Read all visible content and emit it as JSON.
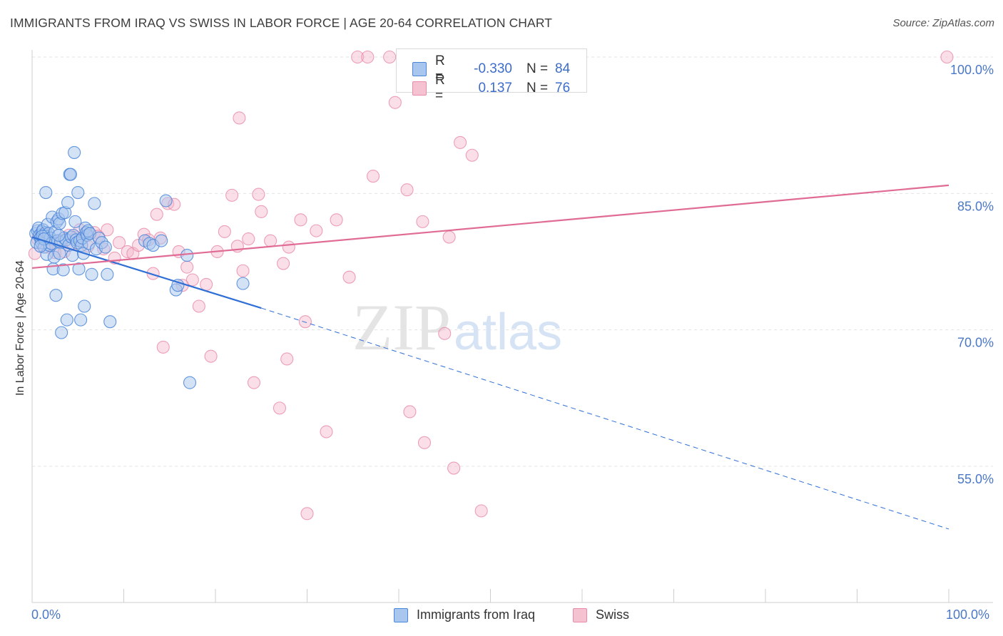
{
  "header": {
    "title": "IMMIGRANTS FROM IRAQ VS SWISS IN LABOR FORCE | AGE 20-64 CORRELATION CHART",
    "source": "Source: ZipAtlas.com"
  },
  "watermark": {
    "zip": "ZIP",
    "atlas": "atlas"
  },
  "legend_top": {
    "rows": [
      {
        "r_label": "R =",
        "r_value": "-0.330",
        "n_label": "N =",
        "n_value": "84"
      },
      {
        "r_label": "R =",
        "r_value": "0.137",
        "n_label": "N =",
        "n_value": "76"
      }
    ]
  },
  "legend_bottom": {
    "series1": "Immigrants from Iraq",
    "series2": "Swiss"
  },
  "x_axis": {
    "left_label": "0.0%",
    "right_label": "100.0%"
  },
  "chart_data": {
    "type": "scatter",
    "title": "IMMIGRANTS FROM IRAQ VS SWISS IN LABOR FORCE | AGE 20-64 CORRELATION CHART",
    "xlabel": "",
    "ylabel": "In Labor Force | Age 20-64",
    "xlim": [
      0,
      100
    ],
    "ylim": [
      40,
      101.5
    ],
    "y_ticks": [
      {
        "value": 55,
        "label": "55.0%"
      },
      {
        "value": 70,
        "label": "70.0%"
      },
      {
        "value": 85,
        "label": "85.0%"
      },
      {
        "value": 100,
        "label": "100.0%"
      }
    ],
    "x_tick_labels": [
      "0.0%",
      "100.0%"
    ],
    "grid": true,
    "colors": {
      "iraq_fill": "#a9c6ee",
      "iraq_stroke": "#4a86d8",
      "iraq_line": "#2f6fd6",
      "swiss_fill": "#f5b8cb",
      "swiss_stroke": "#e88aa8",
      "swiss_line": "#e06b94",
      "tick_label": "#4a78c7"
    },
    "series": [
      {
        "name": "Immigrants from Iraq",
        "r": -0.33,
        "n": 84,
        "trend": {
          "x0": 0,
          "y0": 80.2,
          "x1": 25,
          "y1": 72.4,
          "dash_to_x": 100,
          "dash_to_y": 48.1
        },
        "points": [
          [
            0.4,
            80.6
          ],
          [
            0.5,
            79.6
          ],
          [
            0.6,
            80.9
          ],
          [
            0.7,
            81.2
          ],
          [
            0.8,
            80.4
          ],
          [
            0.9,
            80.1
          ],
          [
            1.0,
            79.6
          ],
          [
            1.1,
            80.8
          ],
          [
            1.2,
            81.0
          ],
          [
            1.3,
            79.1
          ],
          [
            1.4,
            80.3
          ],
          [
            1.5,
            80.7
          ],
          [
            1.6,
            78.3
          ],
          [
            1.7,
            81.6
          ],
          [
            1.8,
            80.6
          ],
          [
            1.9,
            79.3
          ],
          [
            2.0,
            80.1
          ],
          [
            2.1,
            79.5
          ],
          [
            2.2,
            82.4
          ],
          [
            2.3,
            76.7
          ],
          [
            2.4,
            78.0
          ],
          [
            2.5,
            80.8
          ],
          [
            2.6,
            73.8
          ],
          [
            2.7,
            81.9
          ],
          [
            2.8,
            79.8
          ],
          [
            2.9,
            82.2
          ],
          [
            3.0,
            81.7
          ],
          [
            3.1,
            79.6
          ],
          [
            3.2,
            69.7
          ],
          [
            3.3,
            82.8
          ],
          [
            3.4,
            76.6
          ],
          [
            3.5,
            80.1
          ],
          [
            3.6,
            82.9
          ],
          [
            3.7,
            79.9
          ],
          [
            3.8,
            71.1
          ],
          [
            3.9,
            84.0
          ],
          [
            4.0,
            79.3
          ],
          [
            4.1,
            87.1
          ],
          [
            4.2,
            87.1
          ],
          [
            4.3,
            80.2
          ],
          [
            4.4,
            78.2
          ],
          [
            4.5,
            80.4
          ],
          [
            4.6,
            89.5
          ],
          [
            4.7,
            81.9
          ],
          [
            4.8,
            79.9
          ],
          [
            4.9,
            79.6
          ],
          [
            5.0,
            85.1
          ],
          [
            5.1,
            76.7
          ],
          [
            5.2,
            79.8
          ],
          [
            5.3,
            71.1
          ],
          [
            5.4,
            79.3
          ],
          [
            5.5,
            80.1
          ],
          [
            5.6,
            78.4
          ],
          [
            5.7,
            72.6
          ],
          [
            5.8,
            81.2
          ],
          [
            5.9,
            80.7
          ],
          [
            6.0,
            80.4
          ],
          [
            6.1,
            80.9
          ],
          [
            6.2,
            79.5
          ],
          [
            6.3,
            80.6
          ],
          [
            6.5,
            76.1
          ],
          [
            6.8,
            83.9
          ],
          [
            7.0,
            78.9
          ],
          [
            7.3,
            80.1
          ],
          [
            7.6,
            79.6
          ],
          [
            8.0,
            79.1
          ],
          [
            8.2,
            76.1
          ],
          [
            8.5,
            70.9
          ],
          [
            1.1,
            80.3
          ],
          [
            1.3,
            80.0
          ],
          [
            0.9,
            79.2
          ],
          [
            2.9,
            80.4
          ],
          [
            1.5,
            85.1
          ],
          [
            3.0,
            78.4
          ],
          [
            12.3,
            79.8
          ],
          [
            12.8,
            79.5
          ],
          [
            13.2,
            79.3
          ],
          [
            14.1,
            79.8
          ],
          [
            14.6,
            84.2
          ],
          [
            15.7,
            74.4
          ],
          [
            15.9,
            74.9
          ],
          [
            16.9,
            78.2
          ],
          [
            17.2,
            64.2
          ],
          [
            23.0,
            75.1
          ]
        ]
      },
      {
        "name": "Swiss",
        "r": 0.137,
        "n": 76,
        "trend": {
          "x0": 0,
          "y0": 76.8,
          "x1": 100,
          "y1": 85.9
        },
        "points": [
          [
            0.3,
            78.4
          ],
          [
            0.6,
            80.0
          ],
          [
            1.2,
            80.6
          ],
          [
            1.6,
            79.1
          ],
          [
            2.0,
            79.9
          ],
          [
            2.5,
            78.5
          ],
          [
            3.1,
            79.8
          ],
          [
            3.5,
            78.6
          ],
          [
            4.0,
            80.4
          ],
          [
            4.5,
            79.4
          ],
          [
            4.8,
            80.2
          ],
          [
            5.2,
            81.0
          ],
          [
            6.1,
            79.2
          ],
          [
            6.8,
            80.7
          ],
          [
            7.2,
            80.3
          ],
          [
            7.8,
            78.9
          ],
          [
            8.2,
            81.0
          ],
          [
            9.0,
            77.9
          ],
          [
            9.5,
            79.6
          ],
          [
            10.4,
            78.6
          ],
          [
            11.0,
            78.4
          ],
          [
            11.6,
            79.3
          ],
          [
            12.2,
            80.5
          ],
          [
            12.7,
            79.9
          ],
          [
            13.2,
            76.2
          ],
          [
            13.6,
            82.7
          ],
          [
            14.0,
            80.1
          ],
          [
            14.8,
            83.9
          ],
          [
            15.5,
            83.8
          ],
          [
            16.0,
            78.6
          ],
          [
            16.9,
            76.9
          ],
          [
            17.5,
            75.5
          ],
          [
            18.2,
            72.6
          ],
          [
            19.0,
            75.0
          ],
          [
            19.5,
            67.1
          ],
          [
            20.2,
            78.6
          ],
          [
            21.0,
            80.8
          ],
          [
            21.8,
            84.8
          ],
          [
            22.4,
            79.2
          ],
          [
            23.0,
            76.5
          ],
          [
            23.6,
            80.0
          ],
          [
            24.2,
            64.2
          ],
          [
            24.7,
            84.9
          ],
          [
            25.0,
            83.0
          ],
          [
            26.0,
            79.8
          ],
          [
            27.0,
            61.4
          ],
          [
            27.4,
            77.3
          ],
          [
            27.8,
            66.8
          ],
          [
            28.0,
            79.1
          ],
          [
            29.3,
            82.1
          ],
          [
            29.8,
            70.9
          ],
          [
            30.0,
            49.8
          ],
          [
            31.0,
            80.9
          ],
          [
            32.1,
            58.8
          ],
          [
            33.2,
            82.1
          ],
          [
            34.6,
            75.8
          ],
          [
            35.5,
            100
          ],
          [
            36.6,
            100
          ],
          [
            37.2,
            86.9
          ],
          [
            39.0,
            100
          ],
          [
            39.6,
            95.0
          ],
          [
            40.9,
            85.4
          ],
          [
            40.5,
            100
          ],
          [
            41.2,
            61.0
          ],
          [
            42.6,
            81.9
          ],
          [
            42.8,
            57.6
          ],
          [
            45.0,
            69.6
          ],
          [
            45.5,
            80.2
          ],
          [
            46.0,
            54.8
          ],
          [
            46.7,
            90.6
          ],
          [
            48.0,
            89.2
          ],
          [
            49.0,
            50.1
          ],
          [
            99.8,
            100
          ],
          [
            14.3,
            68.1
          ],
          [
            22.6,
            93.3
          ],
          [
            16.4,
            74.9
          ]
        ]
      }
    ]
  }
}
